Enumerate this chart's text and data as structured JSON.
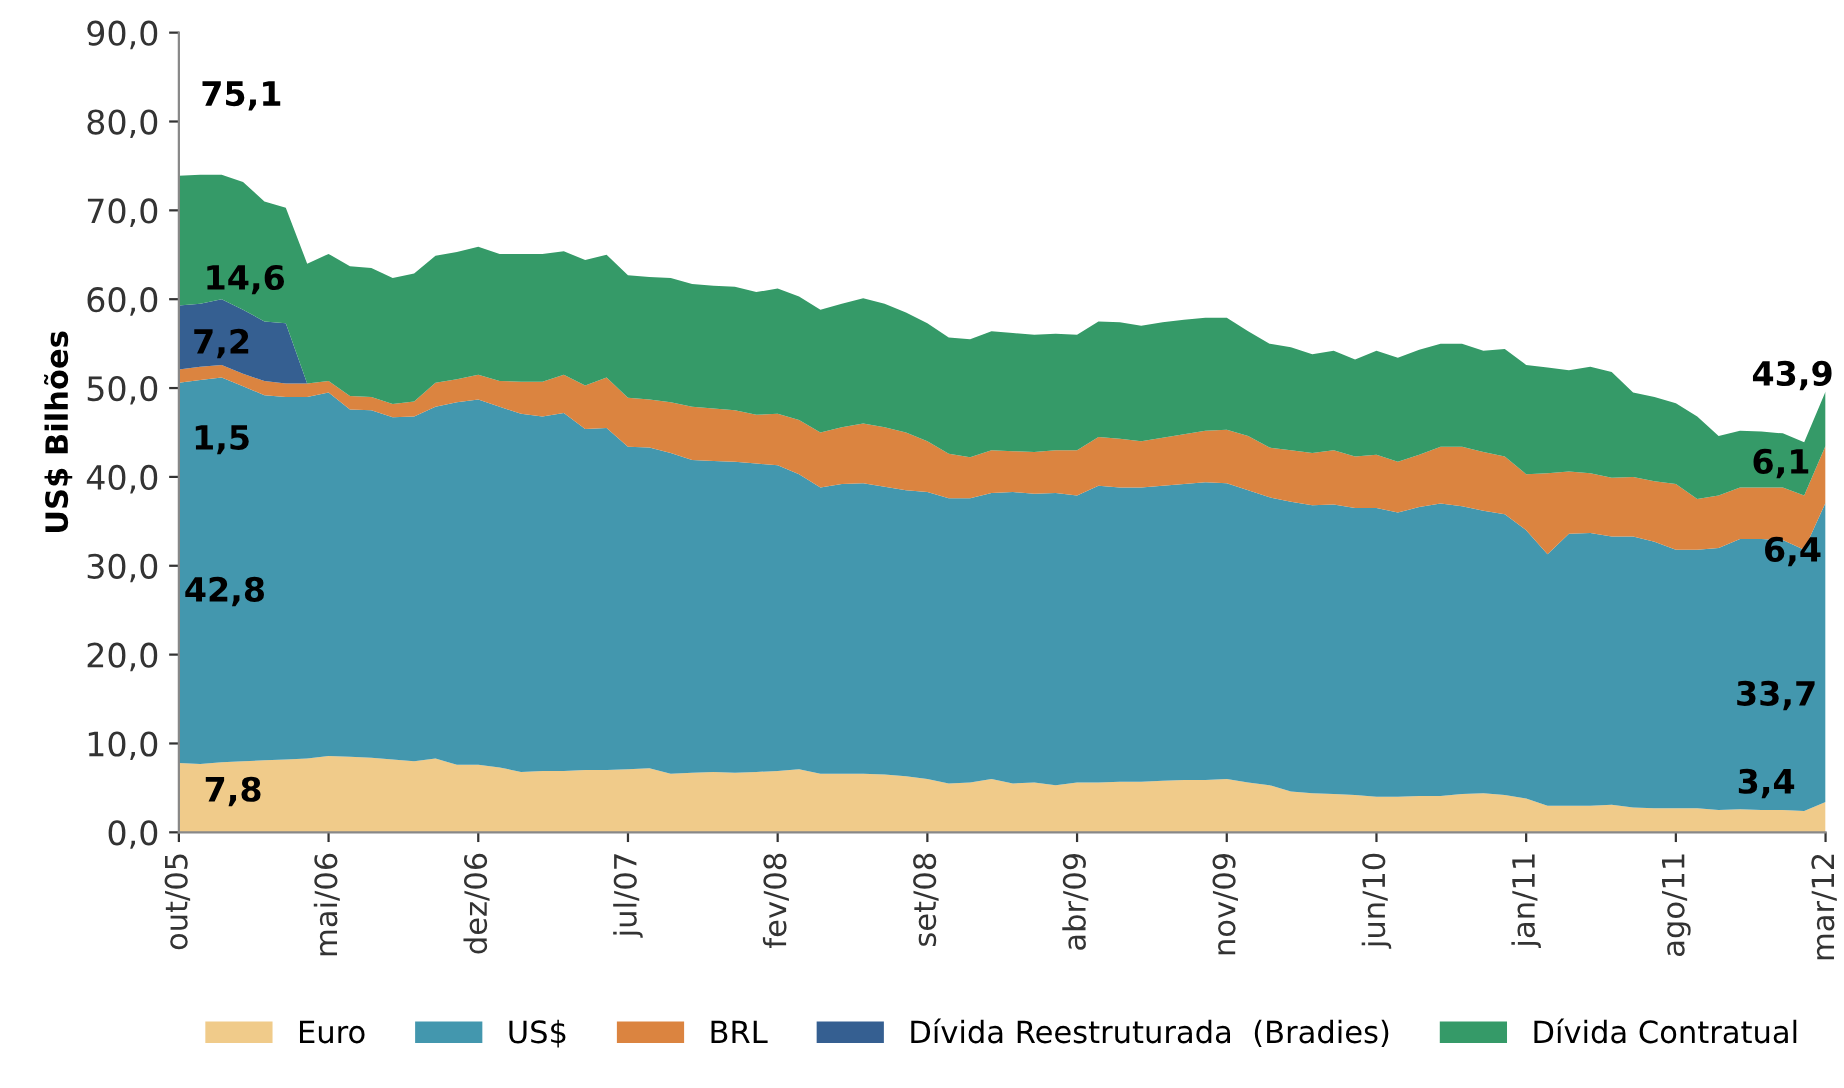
{
  "chart_data": {
    "type": "area",
    "stacked": true,
    "ylabel": "US$ Bilhões",
    "categories": [
      "out/05",
      null,
      null,
      null,
      null,
      null,
      null,
      "mai/06",
      null,
      null,
      null,
      null,
      null,
      null,
      "dez/06",
      null,
      null,
      null,
      null,
      null,
      null,
      "jul/07",
      null,
      null,
      null,
      null,
      null,
      null,
      "fev/08",
      null,
      null,
      null,
      null,
      null,
      null,
      "set/08",
      null,
      null,
      null,
      null,
      null,
      null,
      "abr/09",
      null,
      null,
      null,
      null,
      null,
      null,
      "nov/09",
      null,
      null,
      null,
      null,
      null,
      null,
      "jun/10",
      null,
      null,
      null,
      null,
      null,
      null,
      "jan/11",
      null,
      null,
      null,
      null,
      null,
      null,
      "ago/11",
      null,
      null,
      null,
      null,
      null,
      null,
      "mar/12"
    ],
    "ylim": [
      0,
      90
    ],
    "yticks": [
      {
        "value": 0,
        "label": "0,0"
      },
      {
        "value": 10,
        "label": "10,0"
      },
      {
        "value": 20,
        "label": "20,0"
      },
      {
        "value": 30,
        "label": "30,0"
      },
      {
        "value": 40,
        "label": "40,0"
      },
      {
        "value": 50,
        "label": "50,0"
      },
      {
        "value": 60,
        "label": "60,0"
      },
      {
        "value": 70,
        "label": "70,0"
      },
      {
        "value": 80,
        "label": "80,0"
      },
      {
        "value": 90,
        "label": "90,0"
      }
    ],
    "grid": false,
    "legend": "bottom",
    "series": [
      {
        "name": "Euro",
        "color": "#f0cb8a",
        "values": [
          7.8,
          7.7,
          7.9,
          8.0,
          8.1,
          8.2,
          8.3,
          8.6,
          8.5,
          8.4,
          8.2,
          8.0,
          8.3,
          7.6,
          7.6,
          7.3,
          6.8,
          6.9,
          6.9,
          7.0,
          7.0,
          7.1,
          7.2,
          6.6,
          6.7,
          6.8,
          6.7,
          6.8,
          6.9,
          7.1,
          6.6,
          6.6,
          6.6,
          6.5,
          6.3,
          6.0,
          5.5,
          5.6,
          6.0,
          5.5,
          5.6,
          5.3,
          5.6,
          5.6,
          5.7,
          5.7,
          5.8,
          5.9,
          5.9,
          6.0,
          5.6,
          5.3,
          4.6,
          4.4,
          4.3,
          4.2,
          4.0,
          4.0,
          4.1,
          4.1,
          4.3,
          4.4,
          4.2,
          3.8,
          3.0,
          3.0,
          3.0,
          3.1,
          2.8,
          2.7,
          2.7,
          2.7,
          2.5,
          2.6,
          2.5,
          2.5,
          2.4,
          3.4
        ]
      },
      {
        "name": "US$",
        "color": "#4397ae",
        "values": [
          42.8,
          43.2,
          43.3,
          42.2,
          41.1,
          40.8,
          40.7,
          40.9,
          39.1,
          39.1,
          38.5,
          38.8,
          39.6,
          40.8,
          41.1,
          40.6,
          40.3,
          39.9,
          40.3,
          38.4,
          38.5,
          36.3,
          36.1,
          36.1,
          35.2,
          35.0,
          35.0,
          34.7,
          34.4,
          33.2,
          32.2,
          32.6,
          32.7,
          32.4,
          32.2,
          32.3,
          32.1,
          32.0,
          32.2,
          32.8,
          32.5,
          32.9,
          32.3,
          33.4,
          33.1,
          33.1,
          33.2,
          33.3,
          33.5,
          33.3,
          32.9,
          32.4,
          32.6,
          32.4,
          32.6,
          32.3,
          32.5,
          32.0,
          32.5,
          32.9,
          32.4,
          31.8,
          31.6,
          30.2,
          28.3,
          30.6,
          30.7,
          30.2,
          30.5,
          30.0,
          29.1,
          29.1,
          29.5,
          30.4,
          30.5,
          30.4,
          29.4,
          33.7
        ]
      },
      {
        "name": "BRL",
        "color": "#db8440",
        "values": [
          1.5,
          1.5,
          1.4,
          1.4,
          1.6,
          1.5,
          1.5,
          1.3,
          1.5,
          1.5,
          1.5,
          1.7,
          2.7,
          2.6,
          2.8,
          2.9,
          3.6,
          3.9,
          4.3,
          4.9,
          5.7,
          5.5,
          5.4,
          5.7,
          6.0,
          5.9,
          5.8,
          5.5,
          5.8,
          6.1,
          6.2,
          6.4,
          6.7,
          6.7,
          6.5,
          5.7,
          5.0,
          4.6,
          4.8,
          4.6,
          4.7,
          4.8,
          5.1,
          5.5,
          5.5,
          5.2,
          5.4,
          5.6,
          5.8,
          6.0,
          6.1,
          5.6,
          5.8,
          5.9,
          6.1,
          5.8,
          6.0,
          5.7,
          5.9,
          6.4,
          6.7,
          6.6,
          6.5,
          6.3,
          9.1,
          7.0,
          6.7,
          6.6,
          6.7,
          6.8,
          7.4,
          5.7,
          5.9,
          5.8,
          5.8,
          5.9,
          6.1,
          6.4
        ]
      },
      {
        "name": "Dívida Reestruturada  (Bradies)",
        "color": "#355f91",
        "values": [
          7.2,
          7.1,
          7.4,
          7.2,
          6.7,
          6.8,
          0,
          0,
          0,
          0,
          0,
          0,
          0,
          0,
          0,
          0,
          0,
          0,
          0,
          0,
          0,
          0,
          0,
          0,
          0,
          0,
          0,
          0,
          0,
          0,
          0,
          0,
          0,
          0,
          0,
          0,
          0,
          0,
          0,
          0,
          0,
          0,
          0,
          0,
          0,
          0,
          0,
          0,
          0,
          0,
          0,
          0,
          0,
          0,
          0,
          0,
          0,
          0,
          0,
          0,
          0,
          0,
          0,
          0,
          0,
          0,
          0,
          0,
          0,
          0,
          0,
          0,
          0,
          0,
          0,
          0,
          0,
          0
        ]
      },
      {
        "name": "Dívida Contratual",
        "color": "#359a68",
        "values": [
          14.6,
          14.5,
          14.0,
          14.4,
          13.5,
          13.0,
          13.5,
          14.3,
          14.6,
          14.5,
          14.2,
          14.4,
          14.3,
          14.3,
          14.4,
          14.3,
          14.4,
          14.4,
          13.9,
          14.1,
          13.8,
          13.8,
          13.8,
          14.0,
          13.8,
          13.8,
          13.9,
          13.8,
          14.1,
          13.9,
          13.8,
          13.9,
          14.1,
          13.9,
          13.5,
          13.3,
          13.1,
          13.3,
          13.4,
          13.3,
          13.2,
          13.1,
          13.0,
          13.0,
          13.1,
          13.0,
          13.0,
          12.9,
          12.7,
          12.6,
          11.8,
          11.7,
          11.6,
          11.1,
          11.2,
          10.9,
          11.7,
          11.7,
          11.8,
          11.6,
          11.6,
          11.4,
          12.1,
          12.3,
          11.9,
          11.4,
          12.0,
          11.9,
          9.5,
          9.5,
          9.1,
          9.3,
          6.7,
          6.4,
          6.3,
          6.1,
          6.0,
          6.1
        ]
      }
    ],
    "annotations": [
      "75,1",
      "14,6",
      "7,2",
      "1,5",
      "42,8",
      "7,8",
      "43,9",
      "6,1",
      "6,4",
      "33,7",
      "3,4"
    ]
  }
}
